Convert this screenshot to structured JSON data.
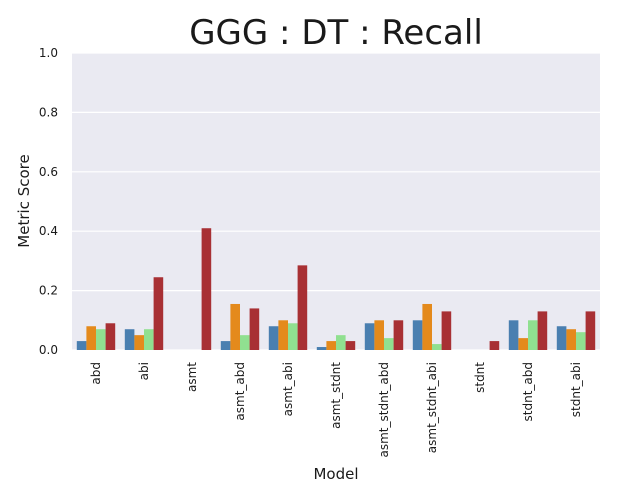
{
  "chart_data": {
    "type": "bar",
    "title": "GGG : DT : Recall",
    "xlabel": "Model",
    "ylabel": "Metric Score",
    "ylim": [
      0,
      1.0
    ],
    "yticks": [
      "0.0",
      "0.2",
      "0.4",
      "0.6",
      "0.8",
      "1.0"
    ],
    "grid": true,
    "legend": "none",
    "categories": [
      "abd",
      "abi",
      "asmt",
      "asmt_abd",
      "asmt_abi",
      "asmt_stdnt",
      "asmt_stdnt_abd",
      "asmt_stdnt_abi",
      "stdnt",
      "stdnt_abd",
      "stdnt_abi"
    ],
    "series": [
      {
        "color": "#4a7fb0",
        "values": [
          0.03,
          0.07,
          0.0,
          0.03,
          0.08,
          0.01,
          0.09,
          0.1,
          0.0,
          0.1,
          0.08
        ]
      },
      {
        "color": "#e48a1c",
        "values": [
          0.08,
          0.05,
          0.0,
          0.155,
          0.1,
          0.03,
          0.1,
          0.155,
          0.0,
          0.04,
          0.07
        ]
      },
      {
        "color": "#90e090",
        "values": [
          0.07,
          0.07,
          0.0,
          0.05,
          0.09,
          0.05,
          0.04,
          0.02,
          0.0,
          0.1,
          0.06
        ]
      },
      {
        "color": "#a83034",
        "values": [
          0.09,
          0.245,
          0.41,
          0.14,
          0.285,
          0.03,
          0.1,
          0.13,
          0.03,
          0.13,
          0.13
        ]
      }
    ]
  }
}
